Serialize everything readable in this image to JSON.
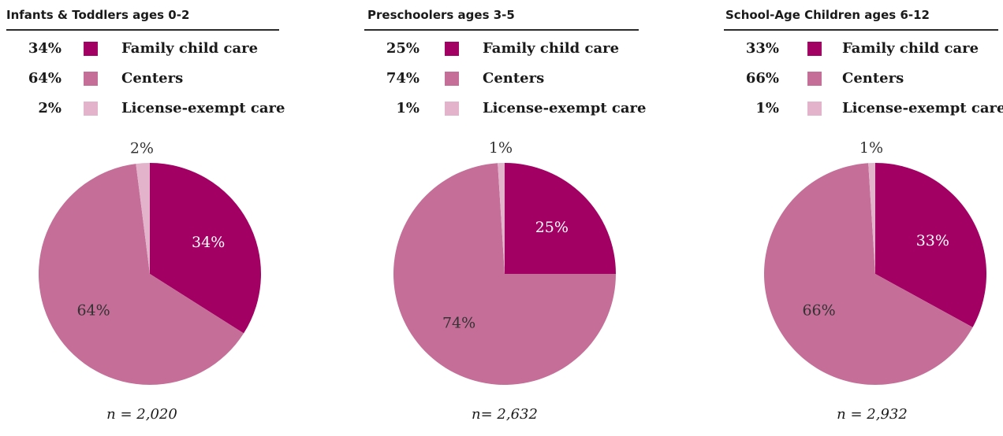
{
  "chart_data": [
    {
      "type": "pie",
      "title": "Infants & Toddlers ages 0-2",
      "categories": [
        "Family child care",
        "Centers",
        "License-exempt care"
      ],
      "values": [
        34,
        64,
        2
      ],
      "labels": [
        "34%",
        "64%",
        "2%"
      ],
      "colors": [
        "#a30064",
        "#c46e98",
        "#e3b3cb"
      ],
      "n_label": "n = 2,020",
      "legend": "top"
    },
    {
      "type": "pie",
      "title": "Preschoolers ages 3-5",
      "categories": [
        "Family child care",
        "Centers",
        "License-exempt care"
      ],
      "values": [
        25,
        74,
        1
      ],
      "labels": [
        "25%",
        "74%",
        "1%"
      ],
      "colors": [
        "#a30064",
        "#c46e98",
        "#e3b3cb"
      ],
      "n_label": "n= 2,632",
      "legend": "top"
    },
    {
      "type": "pie",
      "title": "School-Age Children ages 6-12",
      "categories": [
        "Family child care",
        "Centers",
        "License-exempt care"
      ],
      "values": [
        33,
        66,
        1
      ],
      "labels": [
        "33%",
        "66%",
        "1%"
      ],
      "colors": [
        "#a30064",
        "#c46e98",
        "#e3b3cb"
      ],
      "n_label": "n = 2,932",
      "legend": "top"
    }
  ]
}
